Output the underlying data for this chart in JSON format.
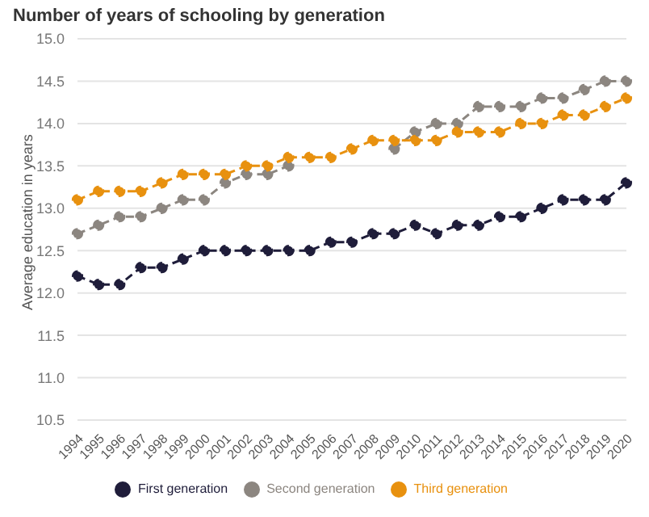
{
  "chart_data": {
    "type": "line",
    "title": "Number of years of schooling by generation",
    "ylabel": "Average education in years",
    "categories": [
      "1994",
      "1995",
      "1996",
      "1997",
      "1998",
      "1999",
      "2000",
      "2001",
      "2002",
      "2003",
      "2004",
      "2005",
      "2006",
      "2007",
      "2008",
      "2009",
      "2010",
      "2011",
      "2012",
      "2013",
      "2014",
      "2015",
      "2016",
      "2017",
      "2018",
      "2019",
      "2020"
    ],
    "series": [
      {
        "name": "First generation",
        "color": "#1f1d3a",
        "values": [
          12.2,
          12.1,
          12.1,
          12.3,
          12.3,
          12.4,
          12.5,
          12.5,
          12.5,
          12.5,
          12.5,
          12.5,
          12.6,
          12.6,
          12.7,
          12.7,
          12.8,
          12.7,
          12.8,
          12.8,
          12.9,
          12.9,
          13.0,
          13.1,
          13.1,
          13.1,
          13.3
        ]
      },
      {
        "name": "Second generation",
        "color": "#8c8680",
        "values": [
          12.7,
          12.8,
          12.9,
          12.9,
          13.0,
          13.1,
          13.1,
          13.3,
          13.4,
          13.4,
          13.5,
          null,
          null,
          null,
          null,
          13.7,
          13.9,
          14.0,
          14.0,
          14.2,
          14.2,
          14.2,
          14.3,
          14.3,
          14.4,
          14.5,
          14.5
        ]
      },
      {
        "name": "Third generation",
        "color": "#e8910f",
        "values": [
          13.1,
          13.2,
          13.2,
          13.2,
          13.3,
          13.4,
          13.4,
          13.4,
          13.5,
          13.5,
          13.6,
          13.6,
          13.6,
          13.7,
          13.8,
          13.8,
          13.8,
          13.8,
          13.9,
          13.9,
          13.9,
          14.0,
          14.0,
          14.1,
          14.1,
          14.2,
          14.3
        ]
      }
    ],
    "ylim": [
      10.5,
      15.0
    ],
    "yticks": [
      {
        "value": 10.5,
        "label": "10.5"
      },
      {
        "value": 11,
        "label": "11.0"
      },
      {
        "value": 11.5,
        "label": "11.5"
      },
      {
        "value": 12,
        "label": "12.0"
      },
      {
        "value": 12.5,
        "label": "12.5"
      },
      {
        "value": 13,
        "label": "13.0"
      },
      {
        "value": 13.5,
        "label": "13.5"
      },
      {
        "value": 14,
        "label": "14.0"
      },
      {
        "value": 14.5,
        "label": "14.5"
      },
      {
        "value": 15,
        "label": "15.0"
      }
    ],
    "grid": "y",
    "legend": "bottom",
    "marker": "circle",
    "line_style": "dashed"
  }
}
